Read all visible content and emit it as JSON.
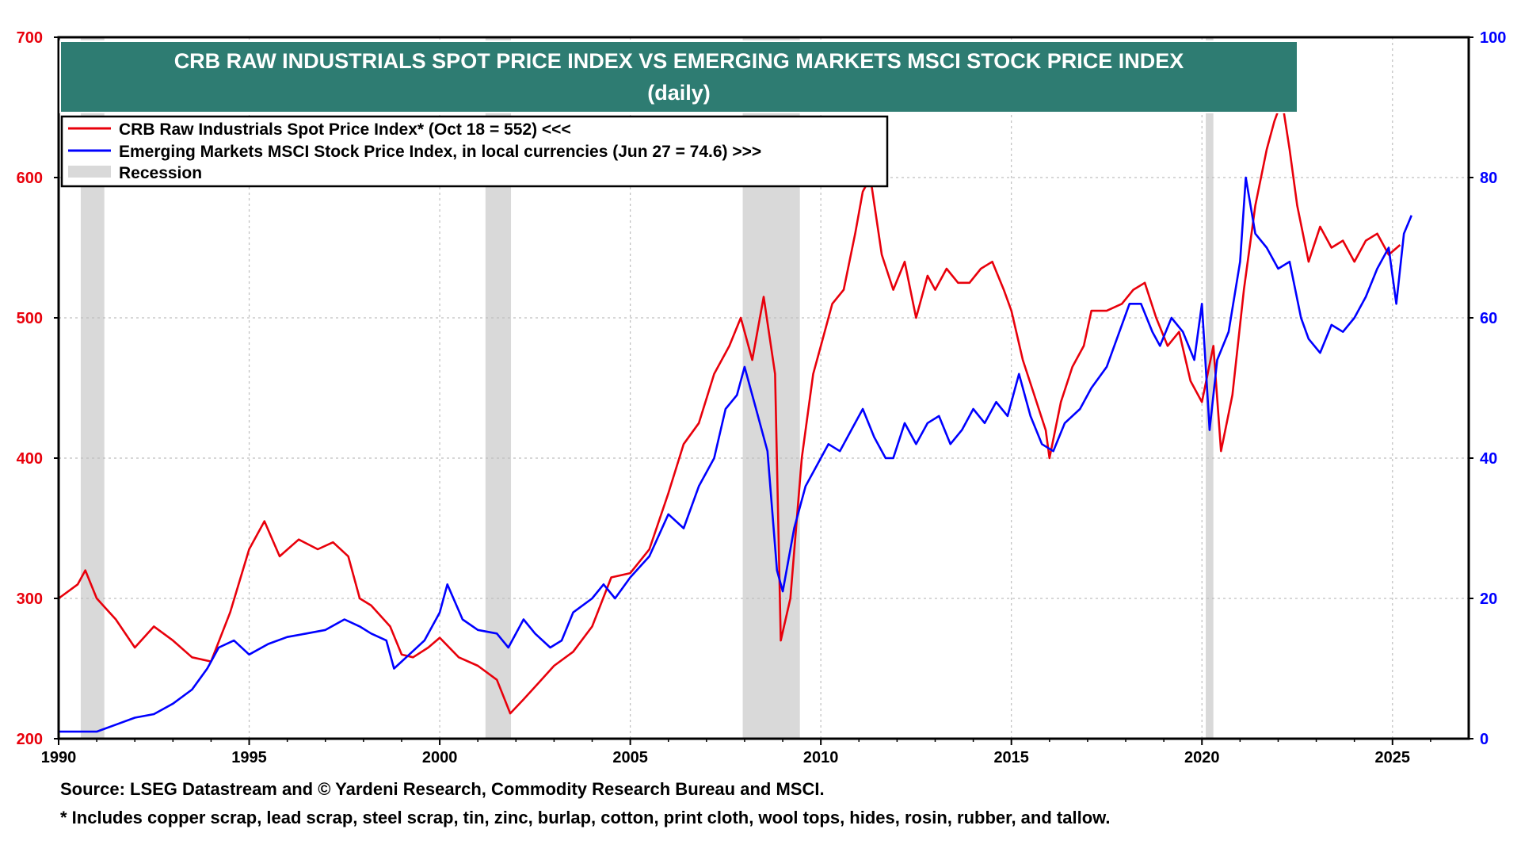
{
  "chart_data": {
    "type": "line",
    "title": "CRB RAW INDUSTRIALS SPOT PRICE INDEX VS EMERGING MARKETS MSCI STOCK PRICE INDEX",
    "subtitle": "(daily)",
    "x_ticks": [
      "1990",
      "1995",
      "2000",
      "2005",
      "2010",
      "2015",
      "2020",
      "2025"
    ],
    "xlim": [
      1990,
      2027
    ],
    "y_left": {
      "ticks": [
        "200",
        "300",
        "400",
        "500",
        "600",
        "700"
      ],
      "lim": [
        200,
        700
      ],
      "color": "#e8000b"
    },
    "y_right": {
      "ticks": [
        "0",
        "20",
        "40",
        "60",
        "80",
        "100"
      ],
      "lim": [
        0,
        100
      ],
      "color": "#0000ff"
    },
    "grid": true,
    "legend_position": "top-left",
    "legend": [
      {
        "label": "CRB Raw Industrials Spot Price Index* (Oct 18 = 552) <<<",
        "color": "#e8000b",
        "kind": "line"
      },
      {
        "label": "Emerging Markets  MSCI Stock Price Index, in local currencies (Jun 27 = 74.6) >>>",
        "color": "#0000ff",
        "kind": "line"
      },
      {
        "label": "Recession",
        "color": "#d9d9d9",
        "kind": "band"
      }
    ],
    "recessions": [
      [
        1990.58,
        1991.2
      ],
      [
        2001.2,
        2001.87
      ],
      [
        2007.95,
        2009.45
      ],
      [
        2020.1,
        2020.3
      ]
    ],
    "series": [
      {
        "name": "CRB Raw Industrials Spot Price Index* (Oct 18 = 552) <<<",
        "axis": "left",
        "color": "#e8000b",
        "x": [
          1990.0,
          1990.5,
          1990.7,
          1991.0,
          1991.5,
          1992.0,
          1992.5,
          1993.0,
          1993.5,
          1994.0,
          1994.5,
          1995.0,
          1995.4,
          1995.8,
          1996.3,
          1996.8,
          1997.2,
          1997.6,
          1997.9,
          1998.2,
          1998.7,
          1999.0,
          1999.3,
          1999.7,
          2000.0,
          2000.5,
          2001.0,
          2001.5,
          2001.85,
          2002.2,
          2002.6,
          2003.0,
          2003.5,
          2004.0,
          2004.5,
          2005.0,
          2005.5,
          2006.0,
          2006.4,
          2006.8,
          2007.2,
          2007.6,
          2007.9,
          2008.2,
          2008.5,
          2008.8,
          2008.95,
          2009.2,
          2009.5,
          2009.8,
          2010.0,
          2010.3,
          2010.6,
          2010.9,
          2011.1,
          2011.3,
          2011.6,
          2011.9,
          2012.2,
          2012.5,
          2012.8,
          2013.0,
          2013.3,
          2013.6,
          2013.9,
          2014.2,
          2014.5,
          2014.8,
          2015.0,
          2015.3,
          2015.6,
          2015.9,
          2016.0,
          2016.3,
          2016.6,
          2016.9,
          2017.1,
          2017.5,
          2017.9,
          2018.2,
          2018.5,
          2018.8,
          2019.1,
          2019.4,
          2019.7,
          2020.0,
          2020.3,
          2020.5,
          2020.8,
          2021.1,
          2021.4,
          2021.7,
          2021.9,
          2022.1,
          2022.3,
          2022.5,
          2022.8,
          2023.1,
          2023.4,
          2023.7,
          2024.0,
          2024.3,
          2024.6,
          2024.9,
          2025.2
        ],
        "values": [
          300,
          310,
          320,
          300,
          285,
          265,
          280,
          270,
          258,
          255,
          290,
          335,
          355,
          330,
          342,
          335,
          340,
          330,
          300,
          295,
          280,
          260,
          258,
          265,
          272,
          258,
          252,
          242,
          218,
          228,
          240,
          252,
          262,
          280,
          315,
          318,
          335,
          375,
          410,
          425,
          460,
          480,
          500,
          470,
          515,
          460,
          270,
          300,
          400,
          460,
          480,
          510,
          520,
          560,
          590,
          600,
          545,
          520,
          540,
          500,
          530,
          520,
          535,
          525,
          525,
          535,
          540,
          520,
          505,
          470,
          445,
          420,
          400,
          440,
          465,
          480,
          505,
          505,
          510,
          520,
          525,
          500,
          480,
          490,
          455,
          440,
          480,
          405,
          445,
          520,
          580,
          620,
          640,
          655,
          620,
          580,
          540,
          565,
          550,
          555,
          540,
          555,
          560,
          545,
          552
        ]
      },
      {
        "name": "Emerging Markets  MSCI Stock Price Index, in local currencies (Jun 27 = 74.6) >>>",
        "axis": "right",
        "color": "#0000ff",
        "x": [
          1990.0,
          1991.0,
          1991.5,
          1992.0,
          1992.5,
          1993.0,
          1993.5,
          1993.9,
          1994.2,
          1994.6,
          1995.0,
          1995.5,
          1996.0,
          1996.5,
          1997.0,
          1997.5,
          1997.9,
          1998.2,
          1998.6,
          1998.8,
          1999.2,
          1999.6,
          2000.0,
          2000.2,
          2000.6,
          2001.0,
          2001.5,
          2001.8,
          2002.2,
          2002.5,
          2002.9,
          2003.2,
          2003.5,
          2004.0,
          2004.3,
          2004.6,
          2005.0,
          2005.5,
          2006.0,
          2006.4,
          2006.8,
          2007.2,
          2007.5,
          2007.8,
          2008.0,
          2008.3,
          2008.6,
          2008.85,
          2009.0,
          2009.3,
          2009.6,
          2009.9,
          2010.2,
          2010.5,
          2010.8,
          2011.1,
          2011.4,
          2011.7,
          2011.9,
          2012.2,
          2012.5,
          2012.8,
          2013.1,
          2013.4,
          2013.7,
          2014.0,
          2014.3,
          2014.6,
          2014.9,
          2015.2,
          2015.5,
          2015.8,
          2016.1,
          2016.4,
          2016.8,
          2017.1,
          2017.5,
          2017.9,
          2018.1,
          2018.4,
          2018.7,
          2018.9,
          2019.2,
          2019.5,
          2019.8,
          2020.0,
          2020.2,
          2020.4,
          2020.7,
          2021.0,
          2021.15,
          2021.4,
          2021.7,
          2022.0,
          2022.3,
          2022.6,
          2022.8,
          2023.1,
          2023.4,
          2023.7,
          2024.0,
          2024.3,
          2024.6,
          2024.9,
          2025.1,
          2025.3,
          2025.5
        ],
        "values": [
          1,
          1,
          2,
          3,
          3.5,
          5,
          7,
          10,
          13,
          14,
          12,
          13.5,
          14.5,
          15,
          15.5,
          17,
          16,
          15,
          14,
          10,
          12,
          14,
          18,
          22,
          17,
          15.5,
          15,
          13,
          17,
          15,
          13,
          14,
          18,
          20,
          22,
          20,
          23,
          26,
          32,
          30,
          36,
          40,
          47,
          49,
          53,
          47,
          41,
          24,
          21,
          30,
          36,
          39,
          42,
          41,
          44,
          47,
          43,
          40,
          40,
          45,
          42,
          45,
          46,
          42,
          44,
          47,
          45,
          48,
          46,
          52,
          46,
          42,
          41,
          45,
          47,
          50,
          53,
          59,
          62,
          62,
          58,
          56,
          60,
          58,
          54,
          62,
          44,
          54,
          58,
          68,
          80,
          72,
          70,
          67,
          68,
          60,
          57,
          55,
          59,
          58,
          60,
          63,
          67,
          70,
          62,
          72,
          74.6
        ]
      }
    ]
  },
  "notes": {
    "source": "Source: LSEG Datastream and © Yardeni Research, Commodity Research Bureau and MSCI.",
    "footnote": "* Includes copper scrap, lead scrap, steel scrap, tin, zinc, burlap, cotton, print cloth, wool tops, hides, rosin, rubber, and tallow."
  }
}
